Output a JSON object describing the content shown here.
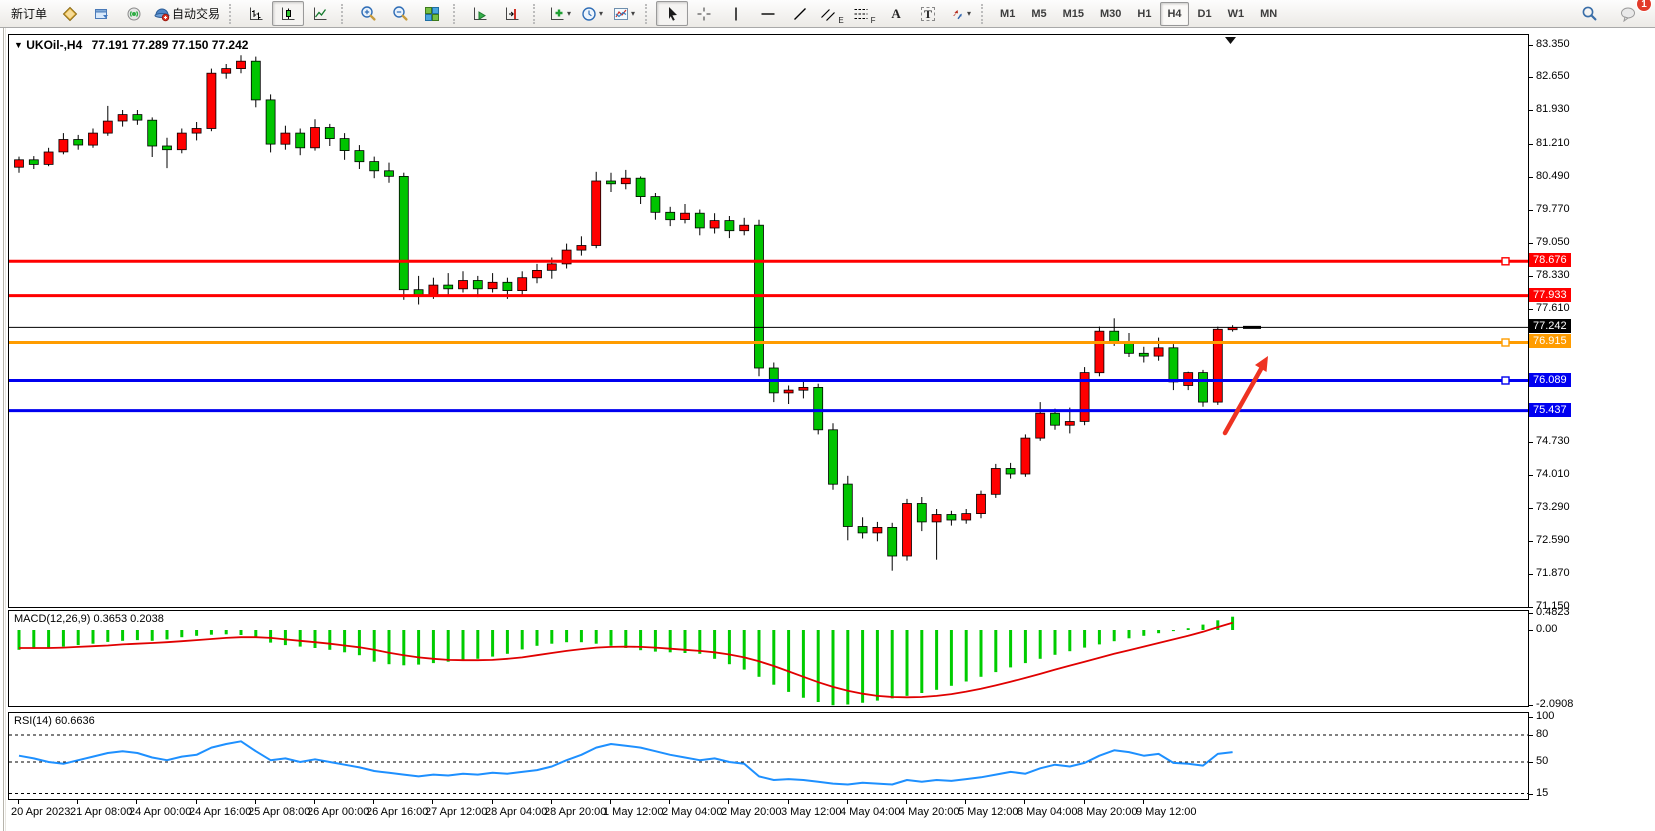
{
  "toolbar": {
    "new_order": "新订单",
    "autotrade": "自动交易",
    "timeframes": [
      "M1",
      "M5",
      "M15",
      "M30",
      "H1",
      "H4",
      "D1",
      "W1",
      "MN"
    ],
    "selected_timeframe": "H4",
    "notification_count": "1",
    "glyphs": {
      "caret": "▾",
      "text_tool": "A",
      "label_tool": "T",
      "channels_suffix": "E",
      "fibo_suffix": "F",
      "symbol_dropdown": "▼"
    }
  },
  "chart_data": {
    "type": "candlestick",
    "symbol": "UKOil-,H4",
    "timeframe": "H4",
    "ohlc_text": "77.191 77.289 77.150 77.242",
    "colors": {
      "bull": "#ff0000",
      "bear": "#00c400",
      "wick": "#000000",
      "rsi_line": "#1e90ff",
      "macd_hist": "#00cc00",
      "macd_signal": "#e00000",
      "arrow": "#ee3322"
    },
    "price_axis_labels": [
      [
        "83.350",
        83.35
      ],
      [
        "82.650",
        82.65
      ],
      [
        "81.930",
        81.93
      ],
      [
        "81.210",
        81.21
      ],
      [
        "80.490",
        80.49
      ],
      [
        "79.770",
        79.77
      ],
      [
        "79.050",
        79.05
      ],
      [
        "78.330",
        78.33
      ],
      [
        "77.610",
        77.61
      ],
      [
        "74.730",
        74.73
      ],
      [
        "74.010",
        74.01
      ],
      [
        "73.290",
        73.29
      ],
      [
        "72.590",
        72.59
      ],
      [
        "71.870",
        71.87
      ],
      [
        "71.150",
        71.15
      ]
    ],
    "hlines": [
      {
        "label": "78.676",
        "value": 78.676,
        "color": "#ff0000",
        "w": 3,
        "handle": true
      },
      {
        "label": "77.933",
        "value": 77.933,
        "color": "#ff0000",
        "w": 3,
        "handle": false
      },
      {
        "label": "77.242",
        "value": 77.242,
        "color": "#000000",
        "w": 1,
        "handle": false
      },
      {
        "label": "76.915",
        "value": 76.915,
        "color": "#ff9c00",
        "w": 3,
        "handle": true
      },
      {
        "label": "76.089",
        "value": 76.089,
        "color": "#0000f0",
        "w": 3,
        "handle": true
      },
      {
        "label": "75.437",
        "value": 75.437,
        "color": "#0000f0",
        "w": 3,
        "handle": false
      }
    ],
    "current_price": 77.242,
    "candles": [
      [
        80.72,
        80.95,
        80.6,
        80.88
      ],
      [
        80.88,
        80.96,
        80.68,
        80.78
      ],
      [
        80.78,
        81.14,
        80.74,
        81.05
      ],
      [
        81.05,
        81.46,
        81.0,
        81.32
      ],
      [
        81.32,
        81.42,
        81.1,
        81.2
      ],
      [
        81.2,
        81.56,
        81.14,
        81.46
      ],
      [
        81.46,
        82.05,
        81.4,
        81.72
      ],
      [
        81.72,
        81.96,
        81.6,
        81.86
      ],
      [
        81.86,
        81.96,
        81.64,
        81.74
      ],
      [
        81.74,
        81.8,
        80.94,
        81.18
      ],
      [
        81.18,
        81.36,
        80.7,
        81.1
      ],
      [
        81.1,
        81.56,
        81.02,
        81.46
      ],
      [
        81.46,
        81.7,
        81.3,
        81.56
      ],
      [
        81.56,
        82.86,
        81.5,
        82.76
      ],
      [
        82.76,
        82.96,
        82.64,
        82.86
      ],
      [
        82.86,
        83.15,
        82.76,
        83.02
      ],
      [
        83.02,
        83.12,
        82.02,
        82.18
      ],
      [
        82.18,
        82.3,
        81.04,
        81.22
      ],
      [
        81.22,
        81.62,
        81.1,
        81.46
      ],
      [
        81.46,
        81.56,
        80.98,
        81.14
      ],
      [
        81.14,
        81.76,
        81.08,
        81.58
      ],
      [
        81.58,
        81.66,
        81.18,
        81.34
      ],
      [
        81.34,
        81.46,
        80.88,
        81.08
      ],
      [
        81.08,
        81.2,
        80.68,
        80.84
      ],
      [
        80.84,
        80.95,
        80.48,
        80.64
      ],
      [
        80.64,
        80.82,
        80.38,
        80.52
      ],
      [
        80.52,
        80.6,
        77.84,
        78.06
      ],
      [
        78.06,
        78.36,
        77.74,
        77.94
      ],
      [
        77.94,
        78.32,
        77.86,
        78.16
      ],
      [
        78.16,
        78.42,
        77.94,
        78.08
      ],
      [
        78.08,
        78.46,
        78.0,
        78.26
      ],
      [
        78.26,
        78.36,
        77.9,
        78.08
      ],
      [
        78.08,
        78.42,
        78.0,
        78.22
      ],
      [
        78.22,
        78.32,
        77.86,
        78.04
      ],
      [
        78.04,
        78.46,
        77.94,
        78.32
      ],
      [
        78.32,
        78.62,
        78.2,
        78.48
      ],
      [
        78.48,
        78.76,
        78.3,
        78.62
      ],
      [
        78.62,
        79.06,
        78.52,
        78.92
      ],
      [
        78.92,
        79.22,
        78.8,
        79.02
      ],
      [
        79.02,
        80.62,
        78.96,
        80.42
      ],
      [
        80.42,
        80.6,
        80.18,
        80.36
      ],
      [
        80.36,
        80.66,
        80.24,
        80.48
      ],
      [
        80.48,
        80.52,
        79.92,
        80.08
      ],
      [
        80.08,
        80.16,
        79.58,
        79.74
      ],
      [
        79.74,
        79.86,
        79.44,
        79.58
      ],
      [
        79.58,
        79.92,
        79.5,
        79.72
      ],
      [
        79.72,
        79.8,
        79.24,
        79.4
      ],
      [
        79.4,
        79.72,
        79.28,
        79.56
      ],
      [
        79.56,
        79.66,
        79.18,
        79.34
      ],
      [
        79.34,
        79.62,
        79.24,
        79.46
      ],
      [
        79.46,
        79.58,
        76.18,
        76.36
      ],
      [
        76.36,
        76.48,
        75.62,
        75.82
      ],
      [
        75.82,
        75.98,
        75.58,
        75.88
      ],
      [
        75.88,
        76.06,
        75.7,
        75.94
      ],
      [
        75.94,
        76.02,
        74.92,
        75.02
      ],
      [
        75.02,
        75.16,
        73.72,
        73.84
      ],
      [
        73.84,
        74.02,
        72.62,
        72.92
      ],
      [
        72.92,
        73.12,
        72.66,
        72.78
      ],
      [
        72.78,
        73.02,
        72.6,
        72.9
      ],
      [
        72.9,
        73.0,
        71.96,
        72.28
      ],
      [
        72.28,
        73.52,
        72.18,
        73.42
      ],
      [
        73.42,
        73.56,
        72.82,
        73.02
      ],
      [
        73.02,
        73.3,
        72.2,
        73.18
      ],
      [
        73.18,
        73.26,
        72.94,
        73.06
      ],
      [
        73.06,
        73.3,
        72.98,
        73.2
      ],
      [
        73.2,
        73.7,
        73.1,
        73.62
      ],
      [
        73.62,
        74.28,
        73.54,
        74.18
      ],
      [
        74.18,
        74.3,
        73.96,
        74.06
      ],
      [
        74.06,
        74.92,
        74.0,
        74.84
      ],
      [
        74.84,
        75.62,
        74.78,
        75.38
      ],
      [
        75.38,
        75.48,
        75.02,
        75.12
      ],
      [
        75.12,
        75.5,
        74.94,
        75.2
      ],
      [
        75.2,
        76.38,
        75.12,
        76.26
      ],
      [
        76.26,
        77.26,
        76.18,
        77.16
      ],
      [
        77.16,
        77.44,
        76.84,
        76.92
      ],
      [
        76.92,
        77.12,
        76.6,
        76.68
      ],
      [
        76.68,
        76.82,
        76.48,
        76.62
      ],
      [
        76.62,
        77.02,
        76.52,
        76.8
      ],
      [
        76.8,
        76.88,
        75.88,
        76.06
      ],
      [
        75.98,
        76.28,
        75.88,
        76.26
      ],
      [
        76.26,
        76.32,
        75.52,
        75.62
      ],
      [
        75.62,
        77.26,
        75.56,
        77.2
      ],
      [
        77.191,
        77.289,
        77.15,
        77.242
      ]
    ],
    "time_labels": [
      "20 Apr 2023",
      "21 Apr 08:00",
      "24 Apr 00:00",
      "24 Apr 16:00",
      "25 Apr 08:00",
      "26 Apr 00:00",
      "26 Apr 16:00",
      "27 Apr 12:00",
      "28 Apr 04:00",
      "28 Apr 20:00",
      "1 May 12:00",
      "2 May 04:00",
      "2 May 20:00",
      "3 May 12:00",
      "4 May 04:00",
      "4 May 20:00",
      "5 May 12:00",
      "8 May 04:00",
      "8 May 20:00",
      "9 May 12:00"
    ],
    "macd": {
      "name": "MACD(12,26,9)",
      "values": "0.3653 0.2038",
      "axis_labels": [
        [
          "0.4823",
          0.4823
        ],
        [
          "0.00",
          0
        ],
        [
          "-2.0908",
          -2.0908
        ]
      ],
      "histogram": [
        -0.55,
        -0.52,
        -0.5,
        -0.46,
        -0.42,
        -0.38,
        -0.33,
        -0.3,
        -0.28,
        -0.3,
        -0.26,
        -0.2,
        -0.16,
        -0.13,
        -0.12,
        -0.14,
        -0.22,
        -0.35,
        -0.42,
        -0.46,
        -0.5,
        -0.55,
        -0.62,
        -0.7,
        -0.88,
        -0.95,
        -0.98,
        -0.96,
        -0.92,
        -0.88,
        -0.84,
        -0.8,
        -0.74,
        -0.66,
        -0.54,
        -0.44,
        -0.38,
        -0.34,
        -0.34,
        -0.38,
        -0.44,
        -0.5,
        -0.56,
        -0.6,
        -0.62,
        -0.64,
        -0.66,
        -0.8,
        -0.95,
        -1.1,
        -1.3,
        -1.52,
        -1.72,
        -1.88,
        -2.0,
        -2.09,
        -2.07,
        -2.02,
        -1.96,
        -1.9,
        -1.83,
        -1.75,
        -1.66,
        -1.55,
        -1.43,
        -1.3,
        -1.17,
        -1.04,
        -0.92,
        -0.8,
        -0.69,
        -0.59,
        -0.49,
        -0.4,
        -0.31,
        -0.23,
        -0.16,
        -0.09,
        -0.03,
        0.05,
        0.15,
        0.27,
        0.37
      ],
      "signal": [
        -0.5,
        -0.5,
        -0.5,
        -0.49,
        -0.47,
        -0.45,
        -0.43,
        -0.4,
        -0.38,
        -0.36,
        -0.34,
        -0.31,
        -0.28,
        -0.25,
        -0.22,
        -0.2,
        -0.2,
        -0.22,
        -0.26,
        -0.3,
        -0.34,
        -0.38,
        -0.43,
        -0.48,
        -0.55,
        -0.63,
        -0.7,
        -0.76,
        -0.8,
        -0.83,
        -0.84,
        -0.84,
        -0.83,
        -0.8,
        -0.76,
        -0.7,
        -0.64,
        -0.58,
        -0.53,
        -0.49,
        -0.47,
        -0.46,
        -0.47,
        -0.49,
        -0.52,
        -0.55,
        -0.58,
        -0.62,
        -0.68,
        -0.76,
        -0.87,
        -1.0,
        -1.15,
        -1.3,
        -1.45,
        -1.58,
        -1.69,
        -1.77,
        -1.83,
        -1.86,
        -1.87,
        -1.86,
        -1.83,
        -1.78,
        -1.71,
        -1.63,
        -1.54,
        -1.44,
        -1.33,
        -1.22,
        -1.1,
        -0.99,
        -0.88,
        -0.77,
        -0.66,
        -0.56,
        -0.46,
        -0.36,
        -0.26,
        -0.16,
        -0.05,
        0.08,
        0.2
      ]
    },
    "rsi": {
      "name": "RSI(14)",
      "value": "60.6636",
      "axis_labels": [
        [
          "100",
          100
        ],
        [
          "80",
          80
        ],
        [
          "50",
          50
        ],
        [
          "15",
          15
        ]
      ],
      "levels": [
        80,
        50,
        15
      ],
      "series": [
        57,
        54,
        50,
        48,
        52,
        56,
        60,
        62,
        60,
        55,
        52,
        56,
        58,
        66,
        70,
        73,
        62,
        52,
        54,
        50,
        53,
        50,
        47,
        44,
        40,
        38,
        36,
        34,
        36,
        35,
        37,
        36,
        38,
        37,
        39,
        41,
        45,
        52,
        58,
        66,
        70,
        68,
        66,
        62,
        58,
        55,
        52,
        54,
        50,
        48,
        34,
        30,
        31,
        30,
        28,
        26,
        25,
        27,
        26,
        25,
        30,
        28,
        30,
        29,
        31,
        33,
        36,
        39,
        37,
        43,
        47,
        45,
        49,
        57,
        63,
        61,
        57,
        59,
        49,
        48,
        46,
        59,
        61
      ]
    }
  }
}
